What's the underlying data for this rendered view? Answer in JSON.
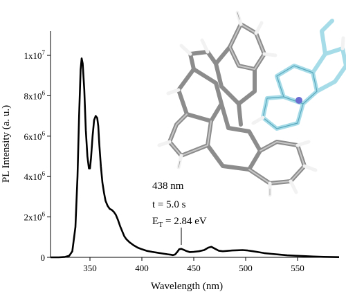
{
  "chart_data": {
    "type": "line",
    "xlabel": "Wavelength (nm)",
    "ylabel": "PL Intensity (a. u.)",
    "xlim": [
      312,
      590
    ],
    "ylim": [
      0,
      11200000
    ],
    "x_ticks": [
      350,
      400,
      450,
      500,
      550
    ],
    "x_tick_labels": [
      "350",
      "400",
      "450",
      "500",
      "550"
    ],
    "y_ticks": [
      {
        "value": 0,
        "mantissa": "0",
        "exponent": ""
      },
      {
        "value": 2000000,
        "mantissa": "2x10",
        "exponent": "6"
      },
      {
        "value": 4000000,
        "mantissa": "4x10",
        "exponent": "6"
      },
      {
        "value": 6000000,
        "mantissa": "6x10",
        "exponent": "6"
      },
      {
        "value": 8000000,
        "mantissa": "8x10",
        "exponent": "6"
      },
      {
        "value": 10000000,
        "mantissa": "1x10",
        "exponent": "7"
      }
    ],
    "grid": false,
    "line_color": "#000000",
    "series": [
      {
        "x": [
          312,
          320,
          326,
          330,
          333,
          336,
          338,
          339.5,
          341,
          342,
          343,
          344.5,
          346,
          347.5,
          349,
          350,
          351,
          352.5,
          354,
          355.5,
          357,
          358,
          359,
          360.5,
          362,
          363.5,
          365,
          367,
          369,
          371,
          373,
          375,
          377,
          379,
          381,
          383,
          385,
          388,
          392,
          396,
          400,
          405,
          410,
          415,
          420,
          425,
          428,
          430,
          432,
          434,
          436,
          438,
          440,
          443,
          446,
          450,
          455,
          460,
          464,
          467,
          470,
          474,
          478,
          482,
          487,
          492,
          497,
          502,
          507,
          512,
          518,
          525,
          532,
          540,
          548,
          556,
          565,
          575,
          585,
          590
        ],
        "y": [
          0,
          0,
          20000,
          80000,
          300000,
          1500000,
          4000000,
          7000000,
          9300000,
          9850000,
          9600000,
          8300000,
          6300000,
          5000000,
          4400000,
          4400000,
          4900000,
          6000000,
          6800000,
          7000000,
          6900000,
          6500000,
          5600000,
          4500000,
          3700000,
          3200000,
          2800000,
          2550000,
          2400000,
          2350000,
          2250000,
          2100000,
          1850000,
          1550000,
          1300000,
          1050000,
          900000,
          750000,
          600000,
          480000,
          400000,
          320000,
          270000,
          230000,
          190000,
          150000,
          130000,
          110000,
          140000,
          260000,
          400000,
          420000,
          380000,
          310000,
          260000,
          270000,
          300000,
          360000,
          480000,
          520000,
          440000,
          330000,
          300000,
          320000,
          340000,
          350000,
          360000,
          340000,
          300000,
          260000,
          210000,
          170000,
          140000,
          100000,
          80000,
          60000,
          40000,
          25000,
          15000,
          10000
        ]
      }
    ],
    "annotations": [
      {
        "line1": "438 nm",
        "line2": "t = 5.0 s",
        "line3_prefix": "E",
        "line3_sub": "T",
        "line3_suffix": " = 2.84 eV",
        "x": 438
      }
    ]
  },
  "molecule": {
    "atom_colors": {
      "carbon_gray": "#8c8c8c",
      "carbon_cyan": "#a6dce8",
      "hydrogen": "#f2f2f2",
      "nitrogen": "#6b6bd0"
    }
  }
}
